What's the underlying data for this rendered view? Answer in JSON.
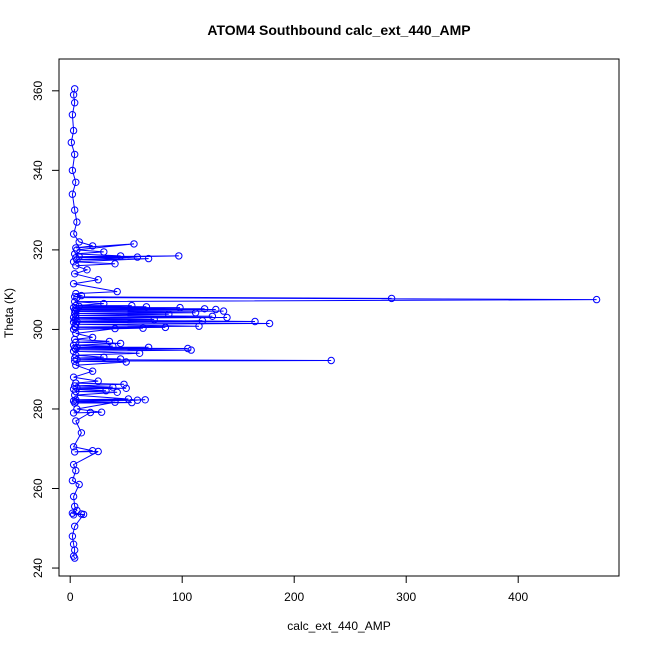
{
  "chart_data": {
    "type": "scatter",
    "title": "ATOM4 Southbound calc_ext_440_AMP",
    "xlabel": "calc_ext_440_AMP",
    "ylabel": "Theta (K)",
    "xlim": [
      -10,
      490
    ],
    "ylim": [
      238,
      368
    ],
    "xticks": [
      0,
      100,
      200,
      300,
      400
    ],
    "yticks": [
      240,
      260,
      280,
      300,
      320,
      340,
      360
    ],
    "xtick_labels": [
      "0",
      "100",
      "200",
      "300",
      "400"
    ],
    "ytick_labels": [
      "240",
      "260",
      "280",
      "300",
      "320",
      "340",
      "360"
    ],
    "series_color": "#0000ff",
    "marker": "open-circle",
    "connected": true,
    "grid": false,
    "points": [
      [
        4,
        360.5
      ],
      [
        3,
        359
      ],
      [
        4,
        357
      ],
      [
        2,
        354
      ],
      [
        3,
        350
      ],
      [
        1,
        347
      ],
      [
        4,
        344
      ],
      [
        2,
        340
      ],
      [
        5,
        337
      ],
      [
        2,
        334
      ],
      [
        4,
        330
      ],
      [
        6,
        327
      ],
      [
        3,
        324
      ],
      [
        8,
        322
      ],
      [
        20,
        321
      ],
      [
        5,
        320.5
      ],
      [
        57,
        321.5
      ],
      [
        6,
        320
      ],
      [
        30,
        319.5
      ],
      [
        4,
        319
      ],
      [
        45,
        318.5
      ],
      [
        8,
        318.3
      ],
      [
        97,
        318.5
      ],
      [
        5,
        318
      ],
      [
        60,
        318.2
      ],
      [
        6,
        317.5
      ],
      [
        70,
        317.8
      ],
      [
        3,
        317
      ],
      [
        40,
        316.5
      ],
      [
        5,
        316
      ],
      [
        15,
        315
      ],
      [
        4,
        314
      ],
      [
        25,
        312.5
      ],
      [
        3,
        311.5
      ],
      [
        42,
        309.5
      ],
      [
        5,
        309
      ],
      [
        10,
        308.5
      ],
      [
        4,
        308.2
      ],
      [
        287,
        307.8
      ],
      [
        6,
        308
      ],
      [
        470,
        307.5
      ],
      [
        4,
        307
      ],
      [
        30,
        306.5
      ],
      [
        5,
        306
      ],
      [
        55,
        306
      ],
      [
        8,
        305.8
      ],
      [
        68,
        305.7
      ],
      [
        3,
        305.5
      ],
      [
        98,
        305.5
      ],
      [
        5,
        305.3
      ],
      [
        120,
        305.2
      ],
      [
        6,
        305
      ],
      [
        130,
        305
      ],
      [
        4,
        304.8
      ],
      [
        137,
        304.6
      ],
      [
        5,
        304.5
      ],
      [
        112,
        304.2
      ],
      [
        4,
        304
      ],
      [
        88,
        303.8
      ],
      [
        5,
        303.5
      ],
      [
        127,
        303.3
      ],
      [
        3,
        303
      ],
      [
        140,
        303
      ],
      [
        5,
        302.8
      ],
      [
        75,
        302.5
      ],
      [
        4,
        302.4
      ],
      [
        165,
        302
      ],
      [
        6,
        302
      ],
      [
        118,
        302.2
      ],
      [
        3,
        301.8
      ],
      [
        178,
        301.5
      ],
      [
        5,
        301.3
      ],
      [
        115,
        300.8
      ],
      [
        4,
        300.6
      ],
      [
        85,
        300.5
      ],
      [
        5,
        300.4
      ],
      [
        65,
        300.3
      ],
      [
        3,
        300
      ],
      [
        40,
        300.2
      ],
      [
        5,
        299
      ],
      [
        20,
        298
      ],
      [
        4,
        297.5
      ],
      [
        35,
        297
      ],
      [
        5,
        296.8
      ],
      [
        45,
        296.5
      ],
      [
        3,
        296
      ],
      [
        38,
        295.8
      ],
      [
        6,
        295.5
      ],
      [
        70,
        295.5
      ],
      [
        4,
        295.3
      ],
      [
        105,
        295.2
      ],
      [
        5,
        295
      ],
      [
        108,
        294.8
      ],
      [
        3,
        294.5
      ],
      [
        62,
        294
      ],
      [
        5,
        293.5
      ],
      [
        30,
        293
      ],
      [
        4,
        292.8
      ],
      [
        45,
        292.6
      ],
      [
        6,
        292.4
      ],
      [
        233,
        292.2
      ],
      [
        4,
        292
      ],
      [
        50,
        291.8
      ],
      [
        5,
        291
      ],
      [
        20,
        289.5
      ],
      [
        3,
        288
      ],
      [
        25,
        287
      ],
      [
        5,
        286.5
      ],
      [
        48,
        286.2
      ],
      [
        4,
        285.8
      ],
      [
        38,
        285.5
      ],
      [
        6,
        285.3
      ],
      [
        50,
        285.2
      ],
      [
        3,
        285
      ],
      [
        32,
        284.6
      ],
      [
        5,
        284.4
      ],
      [
        42,
        284.2
      ],
      [
        4,
        283.5
      ],
      [
        52,
        282.5
      ],
      [
        5,
        282.3
      ],
      [
        60,
        282.2
      ],
      [
        3,
        282
      ],
      [
        67,
        282.3
      ],
      [
        5,
        281.8
      ],
      [
        55,
        281.6
      ],
      [
        4,
        281.5
      ],
      [
        40,
        281.7
      ],
      [
        6,
        280
      ],
      [
        28,
        279.2
      ],
      [
        3,
        279
      ],
      [
        18,
        279.1
      ],
      [
        5,
        277
      ],
      [
        10,
        274
      ],
      [
        3,
        270.5
      ],
      [
        20,
        269.5
      ],
      [
        4,
        269.2
      ],
      [
        25,
        269.3
      ],
      [
        3,
        266
      ],
      [
        5,
        264.5
      ],
      [
        2,
        262
      ],
      [
        8,
        261
      ],
      [
        3,
        258
      ],
      [
        4,
        255.5
      ],
      [
        6,
        254.5
      ],
      [
        2,
        253.8
      ],
      [
        10,
        253.6
      ],
      [
        3,
        253.4
      ],
      [
        12,
        253.5
      ],
      [
        4,
        250.5
      ],
      [
        2,
        248
      ],
      [
        3,
        246
      ],
      [
        4,
        244.5
      ],
      [
        3,
        243
      ],
      [
        4,
        242.5
      ]
    ]
  }
}
